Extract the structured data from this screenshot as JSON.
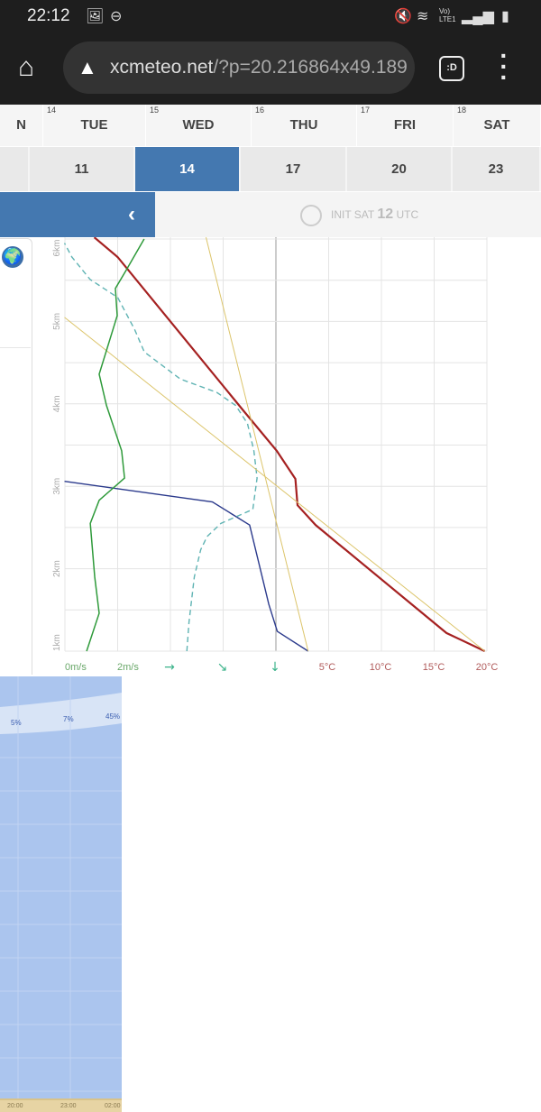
{
  "status_bar": {
    "time": "22:12",
    "icons": [
      "image-icon",
      "dnd-icon",
      "mute-icon",
      "wifi-icon",
      "volte-icon",
      "signal-icon",
      "signal-icon",
      "battery-icon"
    ],
    "volte": "Vo) LTE1"
  },
  "browser": {
    "url_host": "xcmeteo.net",
    "url_rest": "/?p=20.216864x49.189",
    "tab_label": ":D"
  },
  "days": [
    {
      "num": "",
      "label": "N"
    },
    {
      "num": "14",
      "label": "TUE"
    },
    {
      "num": "15",
      "label": "WED"
    },
    {
      "num": "16",
      "label": "THU"
    },
    {
      "num": "17",
      "label": "FRI"
    },
    {
      "num": "18",
      "label": "SAT"
    }
  ],
  "hours": [
    {
      "label": ""
    },
    {
      "label": "11"
    },
    {
      "label": "14",
      "selected": true
    },
    {
      "label": "17"
    },
    {
      "label": "20"
    },
    {
      "label": "23"
    }
  ],
  "init": {
    "prefix": "INIT SAT",
    "hour": "12",
    "suffix": "UTC"
  },
  "colors": {
    "accent": "#4478b0",
    "temperature": "#a52121",
    "dewpoint": "#2b3a8c",
    "wind": "#2e9a3a",
    "dashed": "#5fb3b3",
    "adiabat": "#dcc46a"
  },
  "chart_data": {
    "type": "line",
    "y_axis": {
      "unit": "km",
      "ticks": [
        "1km",
        "2km",
        "3km",
        "4km",
        "5km",
        "6km"
      ],
      "range": [
        1,
        6
      ]
    },
    "x_axis_temp": {
      "ticks": [
        "5°C",
        "10°C",
        "15°C",
        "20°C"
      ],
      "tick_values": [
        5,
        10,
        15,
        20
      ]
    },
    "x_axis_wind": {
      "ticks": [
        "0m/s",
        "2m/s"
      ]
    },
    "wind_direction_arrows": [
      "→",
      "↘",
      "↓"
    ],
    "series": [
      {
        "kind": "temperature",
        "color": "#a52121",
        "points": [
          [
            19.8,
            1.0
          ],
          [
            16.2,
            1.22
          ],
          [
            3.9,
            2.53
          ],
          [
            2.2,
            2.77
          ],
          [
            2.0,
            3.09
          ],
          [
            0.25,
            3.43
          ],
          [
            -2.9,
            3.92
          ],
          [
            -14.7,
            5.78
          ],
          [
            -16.9,
            6.02
          ]
        ]
      },
      {
        "kind": "dewpoint",
        "color": "#2b3a8c",
        "points": [
          [
            3.2,
            1.0
          ],
          [
            0.3,
            1.24
          ],
          [
            -0.5,
            1.57
          ],
          [
            -2.3,
            2.53
          ],
          [
            -5.8,
            2.81
          ],
          [
            -19.7,
            3.06
          ]
        ]
      },
      {
        "kind": "dashed",
        "color": "#5fb3b3",
        "points": [
          [
            -8.2,
            1.0
          ],
          [
            -8.0,
            1.35
          ],
          [
            -7.5,
            1.9
          ],
          [
            -6.9,
            2.23
          ],
          [
            -6.3,
            2.39
          ],
          [
            -5.0,
            2.55
          ],
          [
            -2.0,
            2.72
          ],
          [
            -1.6,
            3.1
          ],
          [
            -1.9,
            3.43
          ],
          [
            -2.5,
            3.76
          ],
          [
            -3.6,
            3.98
          ],
          [
            -5.4,
            4.14
          ],
          [
            -8.8,
            4.3
          ],
          [
            -12.2,
            4.63
          ],
          [
            -13.1,
            4.9
          ],
          [
            -14.7,
            5.29
          ],
          [
            -17.3,
            5.51
          ],
          [
            -19.0,
            5.78
          ],
          [
            -19.7,
            5.95
          ]
        ]
      },
      {
        "kind": "adiabat",
        "color": "#dcc46a",
        "points": [
          [
            -19.7,
            5.05
          ],
          [
            19.8,
            1.0
          ]
        ]
      },
      {
        "kind": "adiabat",
        "color": "#dcc46a",
        "points": [
          [
            -6.4,
            6.02
          ],
          [
            3.2,
            1.0
          ]
        ]
      }
    ],
    "wind": {
      "color": "#2e9a3a",
      "points": [
        [
          0.83,
          1.0
        ],
        [
          1.31,
          1.46
        ],
        [
          1.14,
          1.9
        ],
        [
          0.97,
          2.55
        ],
        [
          1.31,
          2.83
        ],
        [
          2.28,
          3.1
        ],
        [
          2.17,
          3.43
        ],
        [
          1.59,
          3.98
        ],
        [
          1.31,
          4.36
        ],
        [
          2.0,
          5.07
        ],
        [
          1.93,
          5.4
        ],
        [
          2.34,
          5.62
        ],
        [
          3.03,
          6.0
        ]
      ]
    }
  },
  "cloud_panel": {
    "percentages": [
      "5%",
      "7%",
      "45%"
    ],
    "times": [
      "20:00",
      "23:00",
      "02:00"
    ]
  }
}
